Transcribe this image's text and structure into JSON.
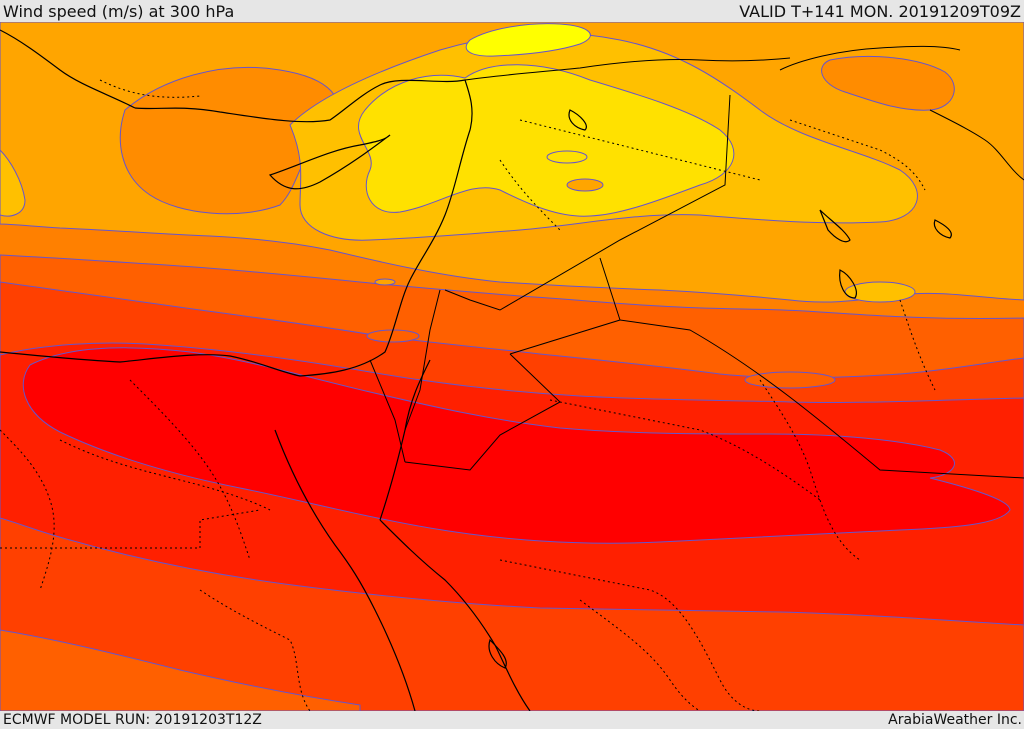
{
  "header": {
    "title": "Wind speed (m/s) at 300 hPa",
    "valid": "VALID T+141 MON. 20191209T09Z"
  },
  "footer": {
    "model_run": "ECMWF MODEL RUN: 20191203T12Z",
    "credit": "ArabiaWeather Inc."
  },
  "palette": {
    "pale_yellow": "#ffff00",
    "yellow": "#ffe100",
    "orange_yellow": "#ffc000",
    "light_orange": "#ffa500",
    "orange": "#ff8000",
    "dark_orange": "#ff6000",
    "red_orange": "#ff4000",
    "red": "#ff2000",
    "core_red": "#ff0000",
    "contour": "#6655cc",
    "border": "#000000"
  }
}
